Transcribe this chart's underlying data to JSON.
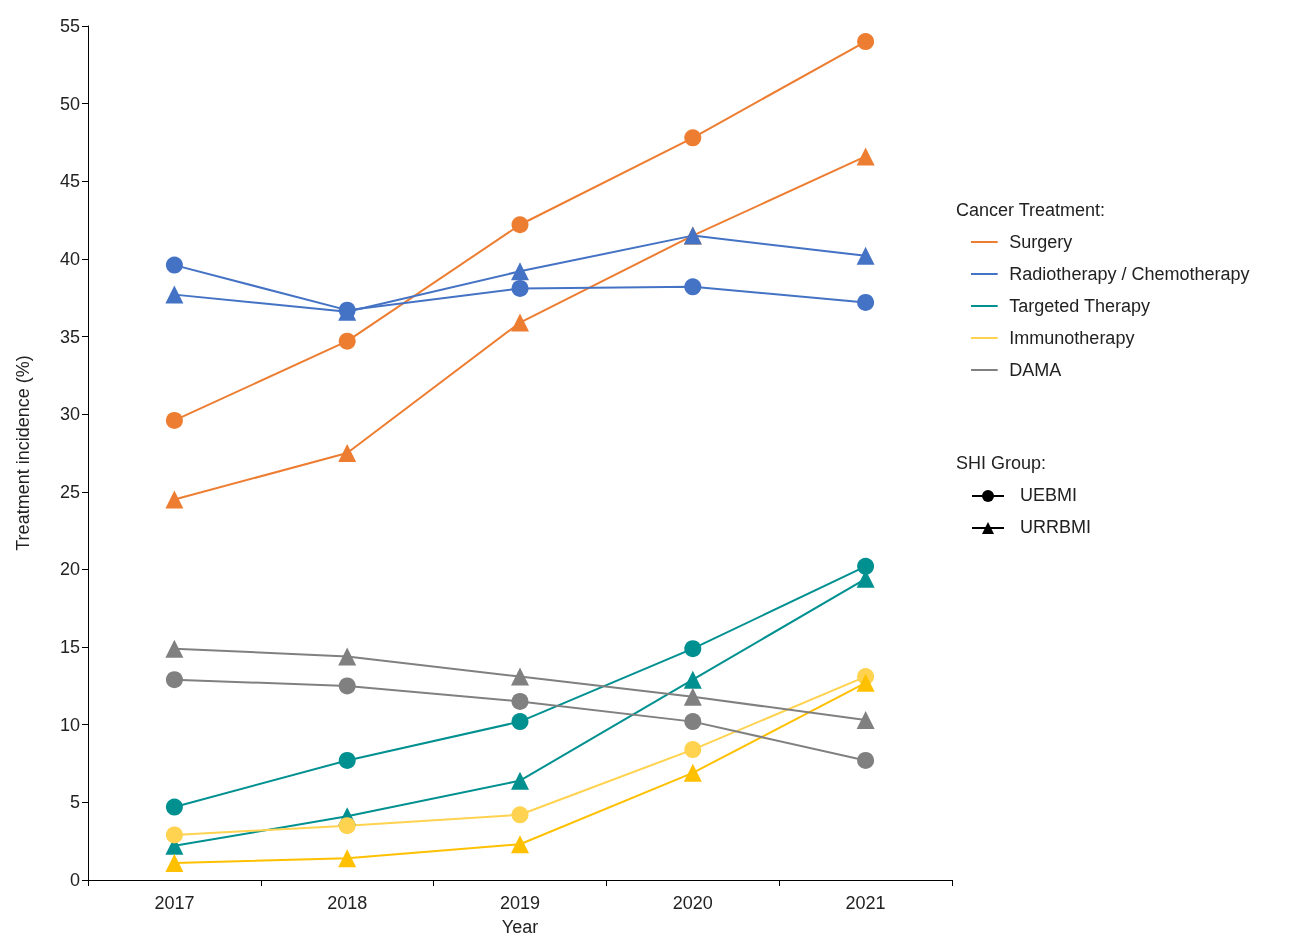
{
  "chart_data": {
    "type": "line",
    "xlabel": "Year",
    "ylabel": "Treatment incidence (%)",
    "legend_title": "Cancer Treatment:",
    "legend": "right",
    "grid": false,
    "categories": [
      "2017",
      "2018",
      "2019",
      "2020",
      "2021"
    ],
    "ylim": [
      0,
      55
    ],
    "yticks": [
      0,
      5,
      10,
      15,
      20,
      25,
      30,
      35,
      40,
      45,
      50,
      55
    ],
    "annotations": [
      "SHI Group:",
      "UEBMI",
      "URRBMI"
    ],
    "series": [
      {
        "name": "Surgery",
        "color": "#ed7d31",
        "marker": "circle",
        "values": [
          29.6,
          34.7,
          42.2,
          47.8,
          54.0
        ]
      },
      {
        "color": "#ed7d31",
        "marker": "triangle",
        "values": [
          24.5,
          27.5,
          35.9,
          41.5,
          46.6
        ]
      },
      {
        "name": "Radiotherapy / Chemotherapy",
        "color": "#4472c4",
        "marker": "circle",
        "values": [
          39.6,
          36.7,
          38.1,
          38.2,
          37.2
        ]
      },
      {
        "color": "#4472c4",
        "marker": "triangle",
        "values": [
          37.7,
          36.6,
          39.2,
          41.5,
          40.2
        ]
      },
      {
        "name": "Targeted Therapy",
        "color": "#009090",
        "marker": "circle",
        "values": [
          4.7,
          7.7,
          10.2,
          14.9,
          20.2
        ]
      },
      {
        "color": "#009090",
        "marker": "triangle",
        "values": [
          2.2,
          4.1,
          6.4,
          12.9,
          19.4
        ]
      },
      {
        "name": "Immunotherapy",
        "color": "#ffd24f",
        "marker": "circle",
        "values": [
          2.9,
          3.5,
          4.2,
          8.4,
          13.1
        ]
      },
      {
        "color": "#ffc000",
        "marker": "triangle",
        "values": [
          1.1,
          1.4,
          2.3,
          6.9,
          12.7
        ]
      },
      {
        "name": "DAMA",
        "color": "#808080",
        "marker": "circle",
        "values": [
          12.9,
          12.5,
          11.5,
          10.2,
          7.7
        ]
      },
      {
        "color": "#808080",
        "marker": "triangle",
        "values": [
          14.9,
          14.4,
          13.1,
          11.8,
          10.3
        ]
      }
    ]
  }
}
